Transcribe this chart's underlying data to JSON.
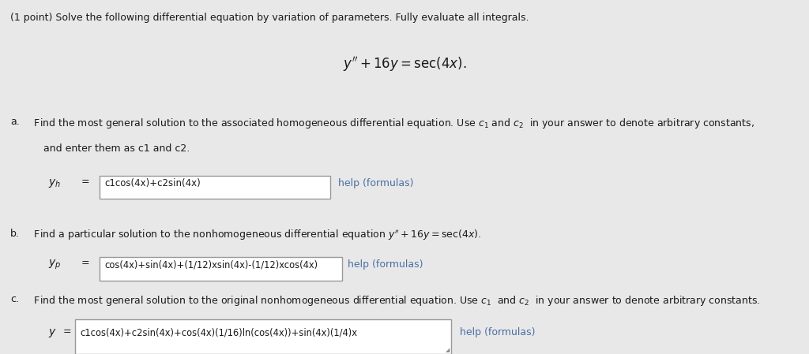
{
  "bg_color": "#e8e8e8",
  "title_text": "(1 point) Solve the following differential equation by variation of parameters. Fully evaluate all integrals.",
  "main_eq": "$y'' + 16y = \\mathrm{sec}(4x).$",
  "part_a_label": "a.",
  "part_a_text": " Find the most general solution to the associated homogeneous differential equation. Use $c_1$ and $c_2$  in your answer to denote arbitrary constants,",
  "part_a_text2": "    and enter them as c1 and c2.",
  "part_a_var": "$y_h$",
  "part_a_eq": "=",
  "part_a_box": "c1cos(4x)+c2sin(4x)",
  "part_a_help": "help (formulas)",
  "part_b_label": "b.",
  "part_b_text": " Find a particular solution to the nonhomogeneous differential equation $y'' + 16y = \\mathrm{sec}(4x)$.",
  "part_b_var": "$y_p$",
  "part_b_eq": "=",
  "part_b_box": "cos(4x)+sin(4x)+(1/12)xsin(4x)-(1/12)xcos(4x)",
  "part_b_help": "help (formulas)",
  "part_c_label": "c.",
  "part_c_text": " Find the most general solution to the original nonhomogeneous differential equation. Use $c_1$  and $c_2$  in your answer to denote arbitrary constants.",
  "part_c_var": "$y$",
  "part_c_eq": "=",
  "part_c_box": "c1cos(4x)+c2sin(4x)+cos(4x)(1/16)ln(cos(4x))+sin(4x)(1/4)x",
  "part_c_help": "help (formulas)",
  "text_color": "#1a1a1a",
  "link_color": "#4a6fa5",
  "box_bg": "#ffffff",
  "box_border": "#999999",
  "resize_color": "#888888"
}
